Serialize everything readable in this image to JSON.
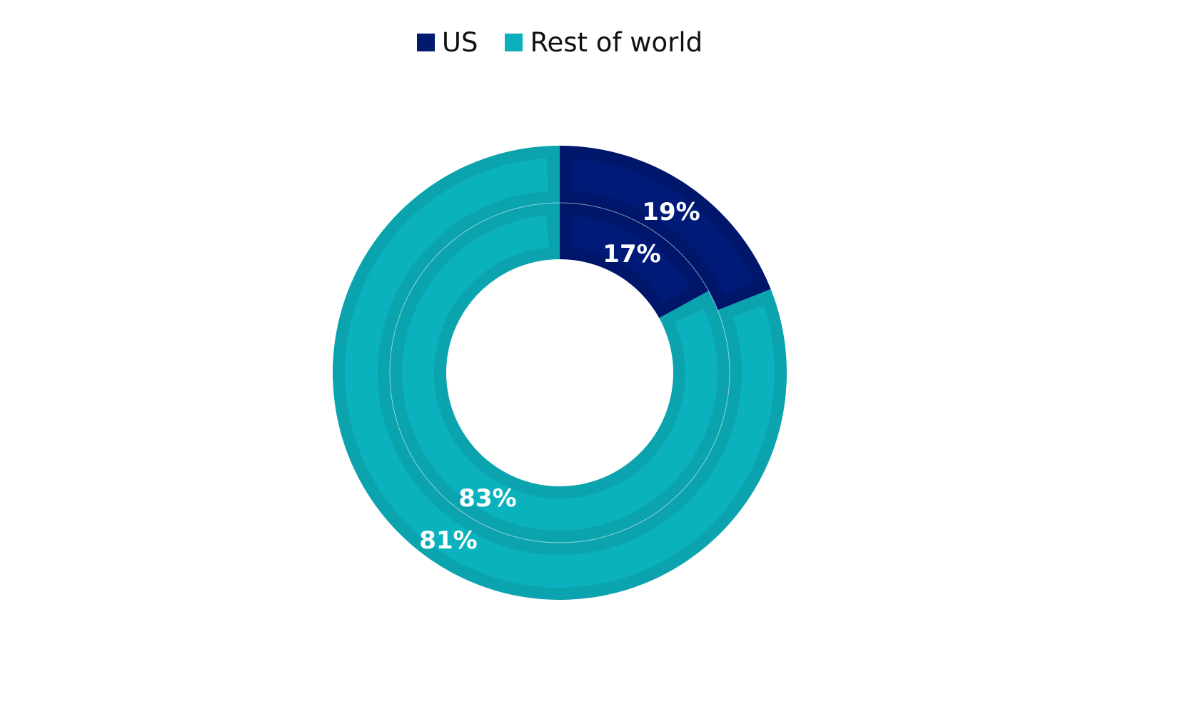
{
  "chart_data": {
    "type": "pie",
    "subtype": "doughnut-nested",
    "title": "",
    "legend": {
      "position": "top",
      "entries": [
        "US",
        "Rest of world"
      ]
    },
    "categories": [
      "US",
      "Rest of world"
    ],
    "series": [
      {
        "name": "Outer ring",
        "values": [
          19,
          81
        ],
        "labels": [
          "19%",
          "81%"
        ]
      },
      {
        "name": "Inner ring",
        "values": [
          17,
          83
        ],
        "labels": [
          "17%",
          "83%"
        ]
      }
    ],
    "colors": {
      "US": "#001a6e",
      "Rest of world": "#0aaebc"
    }
  },
  "legend": {
    "items": [
      {
        "label": "US",
        "color": "#001a6e"
      },
      {
        "label": "Rest of world",
        "color": "#0aaebc"
      }
    ]
  },
  "labels": {
    "outer_us": "19%",
    "outer_row": "81%",
    "inner_us": "17%",
    "inner_row": "83%"
  }
}
